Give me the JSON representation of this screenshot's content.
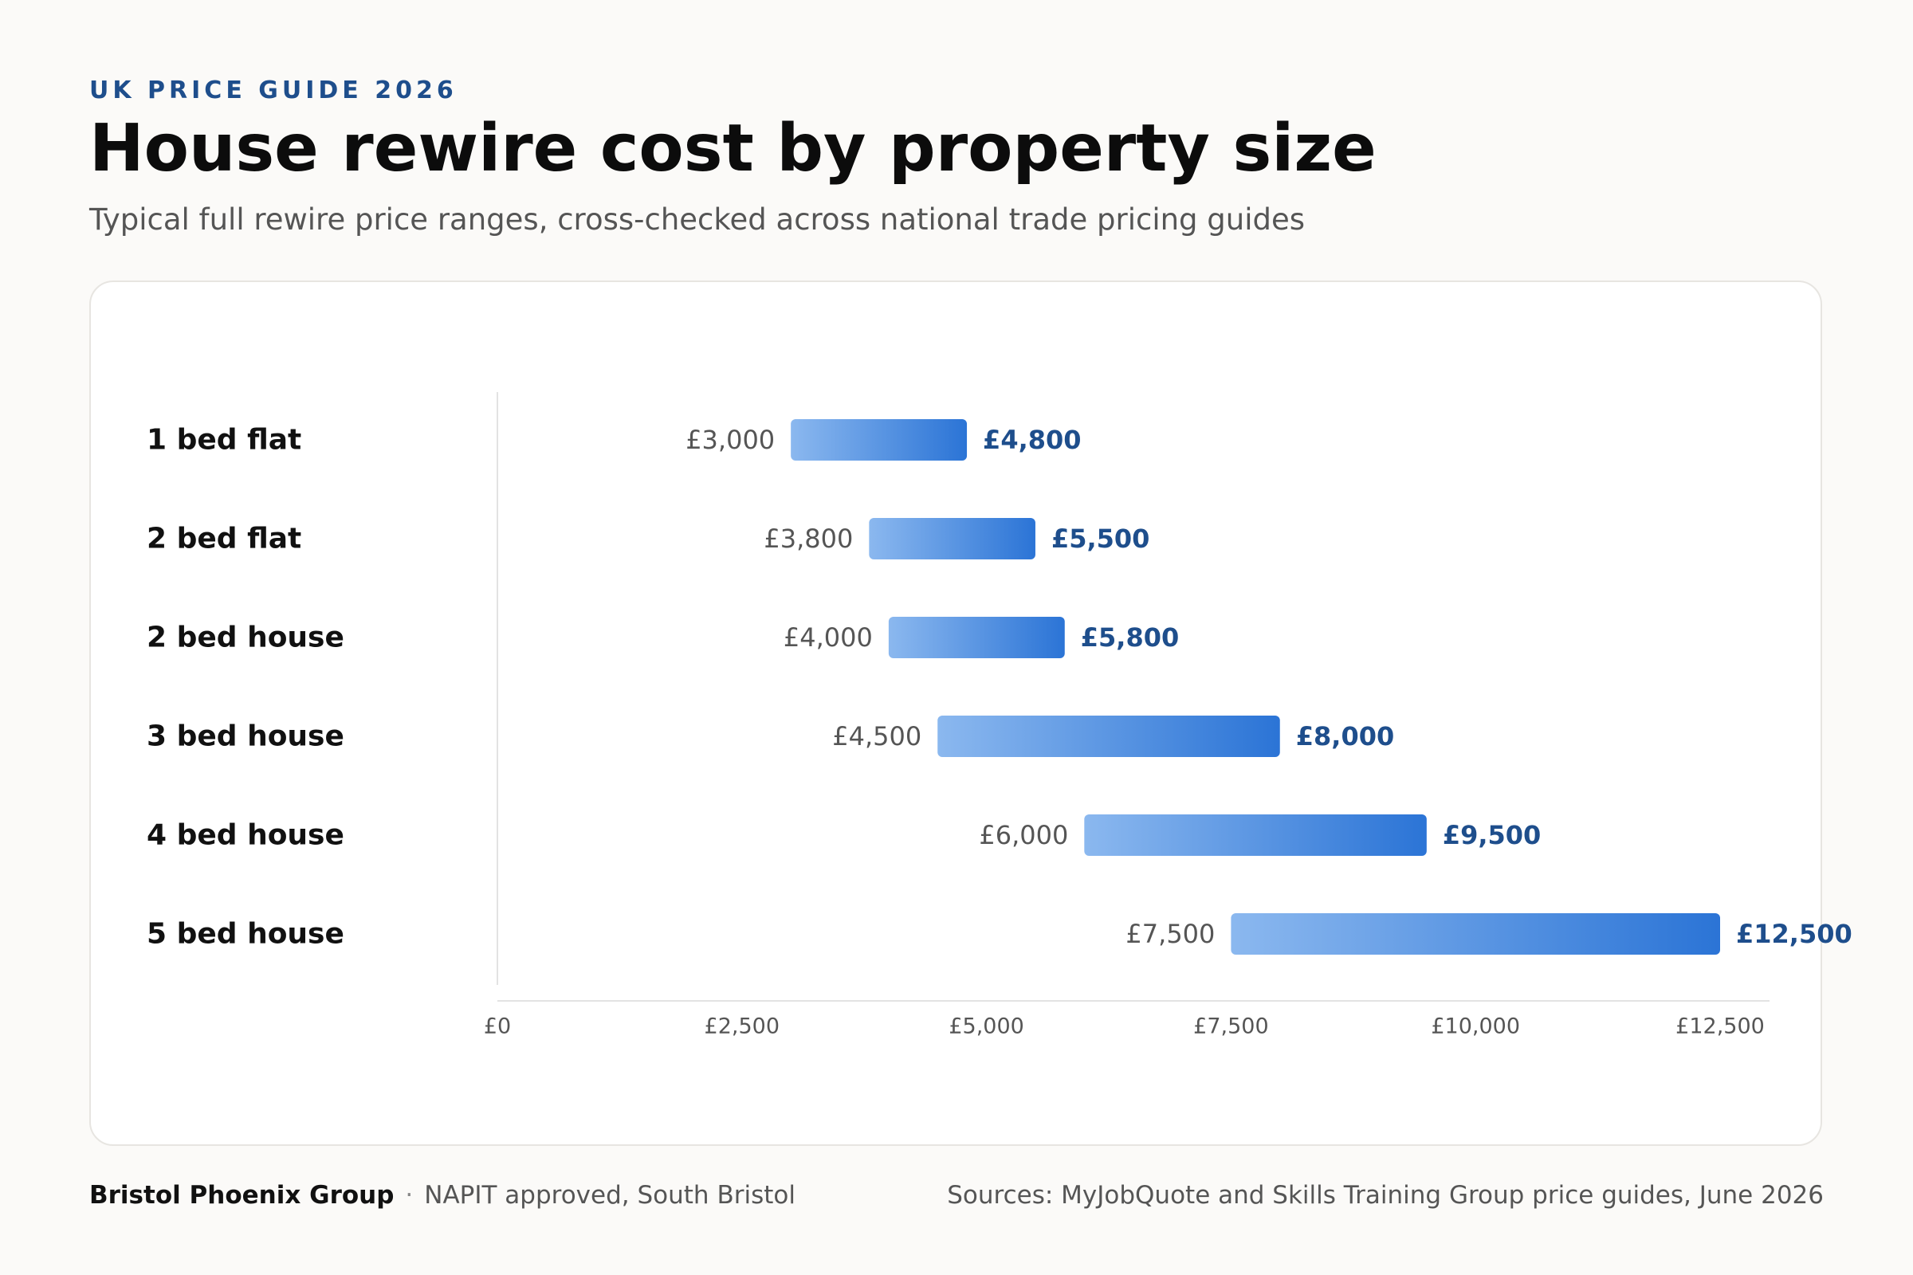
{
  "header": {
    "eyebrow": "UK PRICE GUIDE 2026",
    "title": "House rewire cost by property size",
    "subtitle": "Typical full rewire price ranges, cross-checked across national trade pricing guides"
  },
  "chart_data": {
    "type": "bar",
    "orientation": "horizontal-range",
    "categories": [
      "1 bed flat",
      "2 bed flat",
      "2 bed house",
      "3 bed house",
      "4 bed house",
      "5 bed house"
    ],
    "series": [
      {
        "name": "low",
        "values": [
          3000,
          3800,
          4000,
          4500,
          6000,
          7500
        ]
      },
      {
        "name": "high",
        "values": [
          4800,
          5500,
          5800,
          8000,
          9500,
          12500
        ]
      }
    ],
    "low_labels": [
      "£3,000",
      "£3,800",
      "£4,000",
      "£4,500",
      "£6,000",
      "£7,500"
    ],
    "high_labels": [
      "£4,800",
      "£5,500",
      "£5,800",
      "£8,000",
      "£9,500",
      "£12,500"
    ],
    "xlim": [
      0,
      13000
    ],
    "x_ticks": [
      0,
      2500,
      5000,
      7500,
      10000,
      12500
    ],
    "x_tick_labels": [
      "£0",
      "£2,500",
      "£5,000",
      "£7,500",
      "£10,000",
      "£12,500"
    ],
    "grid": false,
    "colors": {
      "bar_start": "#8bb8ef",
      "bar_end": "#2b74d6",
      "high_label": "#1e4e8c",
      "low_label": "#555555"
    }
  },
  "footer": {
    "brand": "Bristol Phoenix Group",
    "separator": "·",
    "tagline": "NAPIT approved, South Bristol",
    "sources": "Sources: MyJobQuote and Skills Training Group price guides, June 2026"
  }
}
